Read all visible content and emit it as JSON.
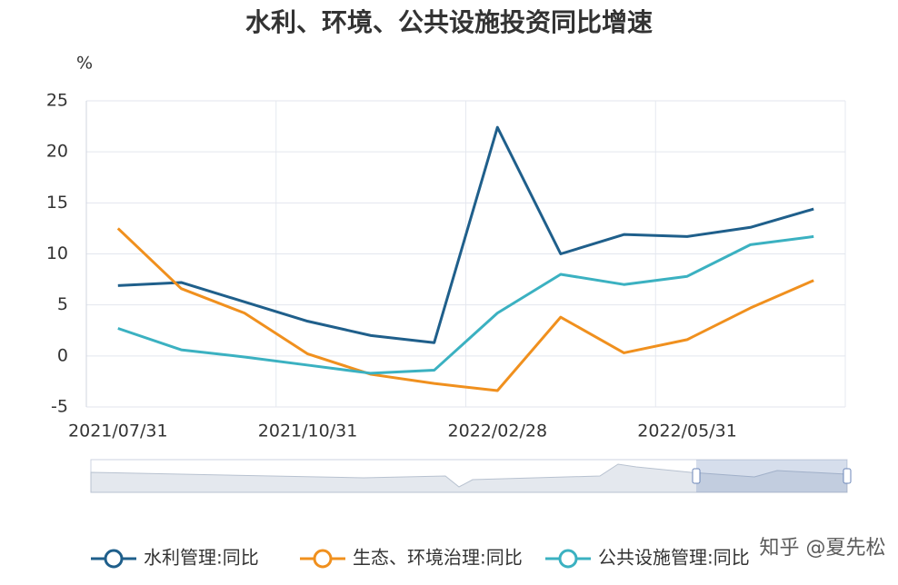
{
  "chart_data": {
    "type": "line",
    "title": "水利、环境、公共设施投资同比增速",
    "y_label": "%",
    "categories": [
      "2021/07/31",
      null,
      null,
      "2021/10/31",
      null,
      null,
      "2022/02/28",
      null,
      null,
      "2022/05/31",
      null,
      null
    ],
    "series": [
      {
        "name": "水利管理:同比",
        "color": "#1f5f8b",
        "values": [
          6.9,
          7.2,
          5.3,
          3.4,
          2.0,
          1.3,
          22.4,
          10.0,
          11.9,
          11.7,
          12.6,
          14.4
        ]
      },
      {
        "name": "生态、环境治理:同比",
        "color": "#f0901e",
        "values": [
          12.5,
          6.6,
          4.2,
          0.2,
          -1.8,
          -2.7,
          -3.4,
          3.8,
          0.3,
          1.6,
          4.7,
          7.4
        ]
      },
      {
        "name": "公共设施管理:同比",
        "color": "#3bb1c1",
        "values": [
          2.7,
          0.6,
          -0.1,
          -0.9,
          -1.7,
          -1.4,
          4.2,
          8.0,
          7.0,
          7.8,
          10.9,
          11.7
        ]
      }
    ],
    "ylim": [
      -5,
      25
    ],
    "yticks": [
      -5,
      0,
      5,
      10,
      15,
      20,
      25
    ],
    "grid": true,
    "watermark": "知乎 @夏先松"
  }
}
